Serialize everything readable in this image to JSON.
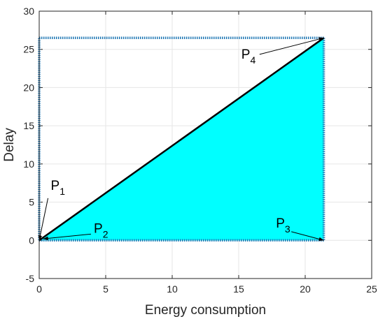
{
  "chart_data": {
    "type": "line",
    "title": "",
    "xlabel": "Energy consumption",
    "ylabel": "Delay",
    "xlim": [
      0,
      25
    ],
    "ylim": [
      -5,
      30
    ],
    "xticks": [
      "0",
      "5",
      "10",
      "15",
      "20",
      "25"
    ],
    "yticks": [
      "-5",
      "0",
      "5",
      "10",
      "15",
      "20",
      "25",
      "30"
    ],
    "grid": true,
    "fill_color": "#00ffff",
    "dotted_color": "#1f77b4",
    "line_color": "#000000",
    "points": [
      {
        "base": "P",
        "sub": "1",
        "x": 0,
        "y": 0
      },
      {
        "base": "P",
        "sub": "2",
        "x": 0.3,
        "y": 0.2
      },
      {
        "base": "P",
        "sub": "3",
        "x": 21.4,
        "y": 0
      },
      {
        "base": "P",
        "sub": "4",
        "x": 21.4,
        "y": 26.5
      }
    ],
    "annotations": [
      {
        "base": "P",
        "sub": "1",
        "target": 0,
        "tx": 0.45,
        "ty": 6.8
      },
      {
        "base": "P",
        "sub": "2",
        "target": 1,
        "tx": 4.0,
        "ty": 1.0
      },
      {
        "base": "P",
        "sub": "3",
        "target": 2,
        "tx": 17.8,
        "ty": 1.5
      },
      {
        "base": "P",
        "sub": "4",
        "target": 3,
        "tx": 15.2,
        "ty": 23.8
      }
    ]
  }
}
